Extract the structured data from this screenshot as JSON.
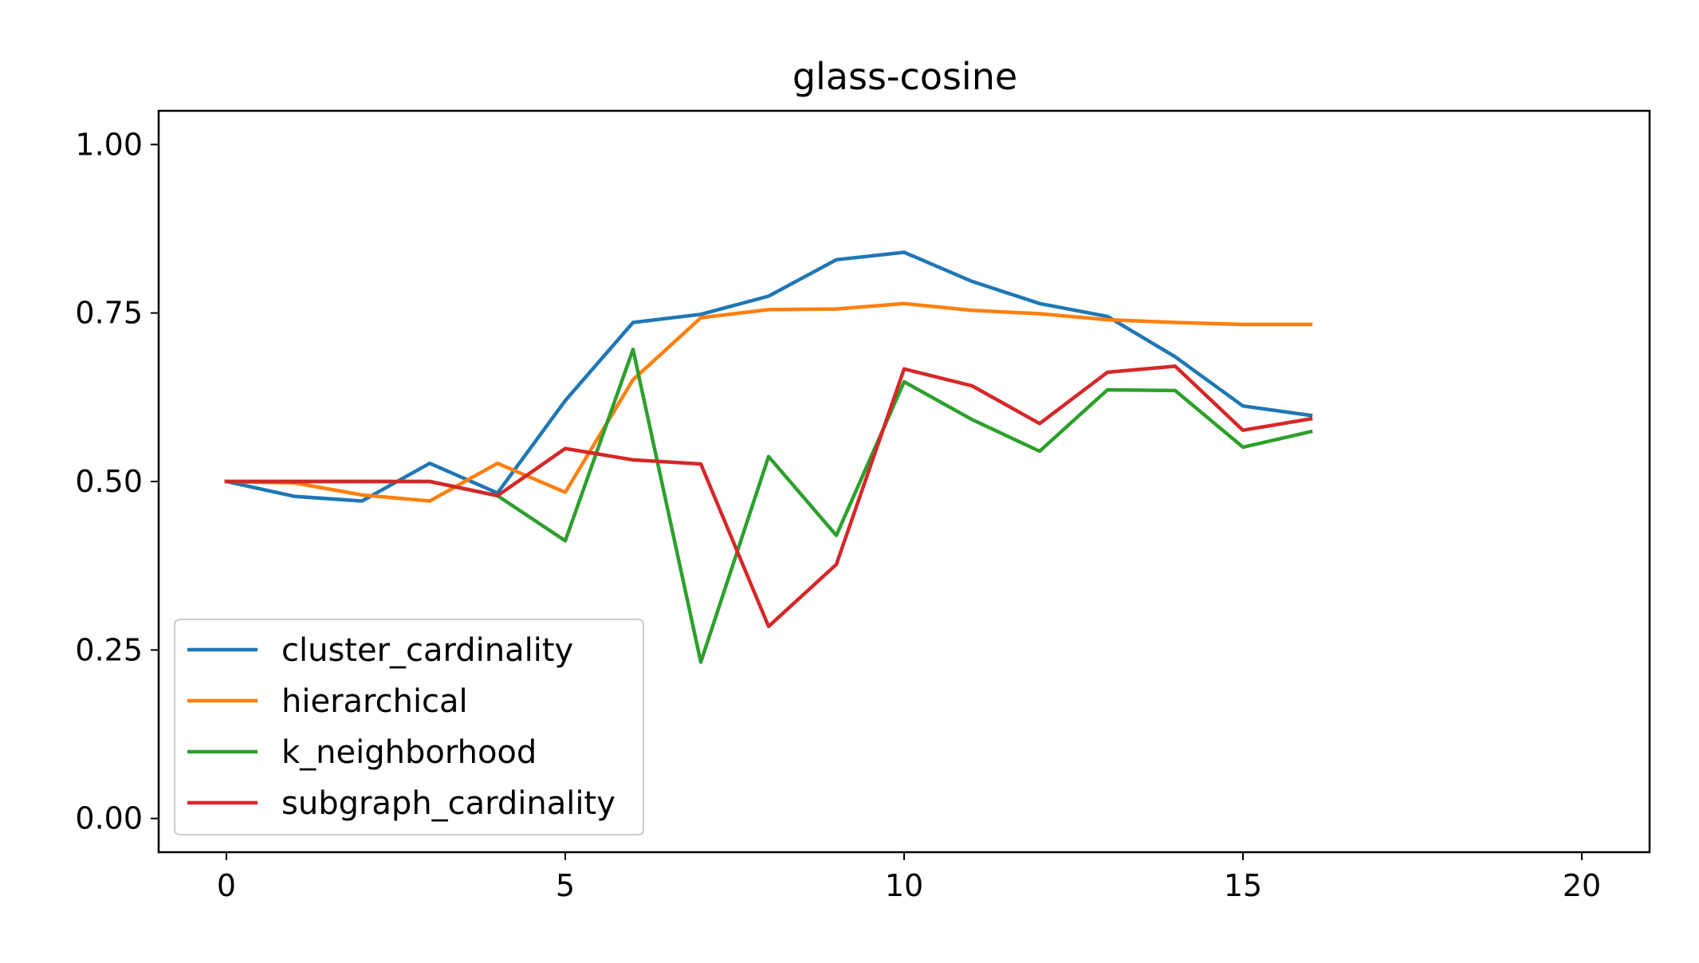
{
  "chart_data": {
    "type": "line",
    "title": "glass-cosine",
    "xlabel": "",
    "ylabel": "",
    "xlim": [
      -1,
      21
    ],
    "ylim": [
      -0.05,
      1.05
    ],
    "xticks": [
      0,
      5,
      10,
      15,
      20
    ],
    "yticks": [
      0.0,
      0.25,
      0.5,
      0.75,
      1.0
    ],
    "xtick_labels": [
      "0",
      "5",
      "10",
      "15",
      "20"
    ],
    "ytick_labels": [
      "0.00",
      "0.25",
      "0.50",
      "0.75",
      "1.00"
    ],
    "grid": false,
    "legend_position": "lower-left",
    "x": [
      0,
      1,
      2,
      3,
      4,
      5,
      6,
      7,
      8,
      9,
      10,
      11,
      12,
      13,
      14,
      15,
      16
    ],
    "series": [
      {
        "name": "cluster_cardinality",
        "color": "#1f77b4",
        "values": [
          0.5,
          0.478,
          0.471,
          0.527,
          0.483,
          0.62,
          0.736,
          0.748,
          0.775,
          0.829,
          0.84,
          0.797,
          0.764,
          0.745,
          0.685,
          0.612,
          0.598
        ]
      },
      {
        "name": "hierarchical",
        "color": "#ff7f0e",
        "values": [
          0.5,
          0.498,
          0.48,
          0.471,
          0.527,
          0.484,
          0.651,
          0.743,
          0.755,
          0.756,
          0.764,
          0.754,
          0.749,
          0.74,
          0.736,
          0.733,
          0.733
        ]
      },
      {
        "name": "k_neighborhood",
        "color": "#2ca02c",
        "values": [
          0.5,
          0.5,
          0.5,
          0.5,
          0.479,
          0.412,
          0.696,
          0.232,
          0.537,
          0.42,
          0.648,
          0.592,
          0.545,
          0.636,
          0.635,
          0.551,
          0.574
        ]
      },
      {
        "name": "subgraph_cardinality",
        "color": "#d62728",
        "values": [
          0.5,
          0.5,
          0.5,
          0.5,
          0.479,
          0.549,
          0.532,
          0.526,
          0.285,
          0.377,
          0.667,
          0.642,
          0.586,
          0.662,
          0.671,
          0.576,
          0.593
        ]
      }
    ]
  }
}
